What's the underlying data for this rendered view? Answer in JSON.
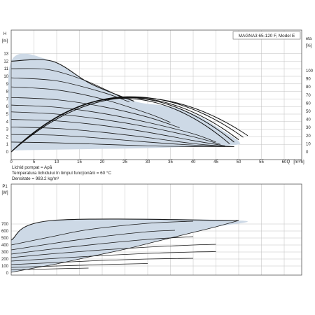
{
  "chart_data": [
    {
      "type": "line",
      "title": "MAGNA3 65-120 F, Model E",
      "ylabel": "H",
      "yunit": "[m]",
      "xlabel": "Q",
      "xunit": "[m³/h]",
      "y2label": "eta",
      "y2unit": "[%]",
      "xlim": [
        0,
        65
      ],
      "ylim": [
        0,
        14
      ],
      "y2lim": [
        0,
        130
      ],
      "x_ticks": [
        0,
        5,
        10,
        15,
        20,
        25,
        30,
        35,
        40,
        45,
        50,
        55,
        60
      ],
      "y_ticks": [
        0,
        1,
        2,
        3,
        4,
        5,
        6,
        7,
        8,
        9,
        10,
        11,
        12,
        13
      ],
      "y2_ticks": [
        0,
        10,
        20,
        30,
        40,
        50,
        60,
        70,
        80,
        90,
        100
      ],
      "grid": true,
      "envelope": [
        [
          0,
          0
        ],
        [
          0,
          12.0
        ],
        [
          9,
          12.0
        ],
        [
          17.5,
          9.0
        ],
        [
          27,
          6.7
        ],
        [
          35,
          6.0
        ],
        [
          41,
          4.8
        ],
        [
          46,
          3.0
        ],
        [
          50,
          1.4
        ],
        [
          49,
          0.9
        ],
        [
          40,
          0.7
        ],
        [
          30,
          0.5
        ],
        [
          20,
          0.4
        ],
        [
          10,
          0.3
        ],
        [
          0,
          0.2
        ]
      ],
      "qh_curves": [
        {
          "points": [
            [
              0,
              12.0
            ],
            [
              9,
              12.0
            ],
            [
              17.5,
              9.0
            ],
            [
              27,
              6.7
            ]
          ]
        },
        {
          "points": [
            [
              0,
              11.0
            ],
            [
              8,
              10.9
            ],
            [
              16,
              9.5
            ],
            [
              24,
              7.3
            ]
          ]
        },
        {
          "points": [
            [
              0,
              9.8
            ],
            [
              10,
              9.4
            ],
            [
              20,
              7.9
            ],
            [
              26,
              6.6
            ]
          ]
        },
        {
          "points": [
            [
              0,
              8.6
            ],
            [
              10,
              8.2
            ],
            [
              20,
              7.0
            ],
            [
              30,
              5.1
            ],
            [
              35,
              3.9
            ]
          ]
        },
        {
          "points": [
            [
              0,
              7.2
            ],
            [
              10,
              6.9
            ],
            [
              20,
              6.0
            ],
            [
              30,
              4.6
            ],
            [
              37,
              3.2
            ]
          ]
        },
        {
          "points": [
            [
              0,
              6.2
            ],
            [
              10,
              5.9
            ],
            [
              20,
              5.1
            ],
            [
              30,
              3.9
            ],
            [
              40,
              2.4
            ],
            [
              45,
              1.3
            ]
          ]
        },
        {
          "points": [
            [
              0,
              5.3
            ],
            [
              10,
              5.0
            ],
            [
              20,
              4.3
            ],
            [
              30,
              3.3
            ],
            [
              40,
              2.0
            ],
            [
              46,
              1.0
            ]
          ]
        },
        {
          "points": [
            [
              0,
              4.3
            ],
            [
              10,
              4.1
            ],
            [
              20,
              3.5
            ],
            [
              30,
              2.6
            ],
            [
              40,
              1.5
            ],
            [
              47,
              0.8
            ]
          ]
        },
        {
          "points": [
            [
              0,
              3.3
            ],
            [
              10,
              3.1
            ],
            [
              20,
              2.6
            ],
            [
              30,
              1.9
            ],
            [
              40,
              1.1
            ],
            [
              48,
              0.7
            ]
          ]
        },
        {
          "points": [
            [
              0,
              2.3
            ],
            [
              10,
              2.2
            ],
            [
              20,
              1.8
            ],
            [
              30,
              1.3
            ],
            [
              40,
              0.9
            ],
            [
              49,
              0.7
            ]
          ]
        },
        {
          "points": [
            [
              0,
              1.3
            ],
            [
              10,
              1.2
            ],
            [
              20,
              1.0
            ],
            [
              30,
              0.8
            ],
            [
              40,
              0.7
            ],
            [
              49,
              0.7
            ]
          ]
        }
      ],
      "efficiency_curves": [
        {
          "peak_q": 24.5,
          "end_q": 48.0,
          "peak_eta": 66,
          "end_eta": 10
        },
        {
          "peak_q": 25.0,
          "end_q": 49.0,
          "peak_eta": 67,
          "end_eta": 12
        },
        {
          "peak_q": 25.5,
          "end_q": 50.0,
          "peak_eta": 67,
          "end_eta": 15
        },
        {
          "peak_q": 26.0,
          "end_q": 51.0,
          "peak_eta": 68,
          "end_eta": 18
        },
        {
          "peak_q": 27.0,
          "end_q": 52.0,
          "peak_eta": 67,
          "end_eta": 20
        }
      ],
      "info_lines": [
        "Lichid pompat = Apă",
        "Temperatura lichidului în timpul funcţionării = 60 °C",
        "Densitate = 983.2 kg/m³"
      ]
    },
    {
      "type": "line",
      "ylabel": "P1",
      "yunit": "[W]",
      "xlim": [
        0,
        65
      ],
      "ylim": [
        0,
        800
      ],
      "y_ticks": [
        0,
        100,
        200,
        300,
        400,
        500,
        600,
        700
      ],
      "grid": true,
      "envelope": [
        [
          0,
          470
        ],
        [
          9,
          750
        ],
        [
          50,
          750
        ],
        [
          45,
          660
        ],
        [
          40,
          580
        ],
        [
          35,
          500
        ],
        [
          30,
          420
        ],
        [
          25,
          340
        ],
        [
          20,
          270
        ],
        [
          15,
          200
        ],
        [
          10,
          130
        ],
        [
          5,
          70
        ],
        [
          0,
          10
        ]
      ],
      "power_curves": [
        {
          "points": [
            [
              0,
              470
            ],
            [
              9,
              750
            ],
            [
              50,
              750
            ]
          ]
        },
        {
          "points": [
            [
              0,
              400
            ],
            [
              9,
              520
            ],
            [
              17,
              620
            ],
            [
              30,
              710
            ],
            [
              40,
              740
            ]
          ]
        },
        {
          "points": [
            [
              0,
              330
            ],
            [
              10,
              430
            ],
            [
              20,
              520
            ],
            [
              30,
              590
            ],
            [
              36,
              610
            ]
          ]
        },
        {
          "points": [
            [
              0,
              270
            ],
            [
              10,
              350
            ],
            [
              20,
              420
            ],
            [
              30,
              480
            ],
            [
              40,
              520
            ]
          ]
        },
        {
          "points": [
            [
              0,
              220
            ],
            [
              10,
              280
            ],
            [
              20,
              330
            ],
            [
              30,
              370
            ],
            [
              40,
              400
            ],
            [
              45,
              410
            ]
          ]
        },
        {
          "points": [
            [
              0,
              170
            ],
            [
              10,
              210
            ],
            [
              20,
              250
            ],
            [
              30,
              280
            ],
            [
              40,
              300
            ],
            [
              45,
              305
            ]
          ]
        },
        {
          "points": [
            [
              0,
              120
            ],
            [
              10,
              150
            ],
            [
              20,
              180
            ],
            [
              30,
              200
            ],
            [
              40,
              210
            ]
          ]
        },
        {
          "points": [
            [
              0,
              80
            ],
            [
              10,
              100
            ],
            [
              20,
              120
            ],
            [
              30,
              135
            ]
          ]
        },
        {
          "points": [
            [
              0,
              45
            ],
            [
              10,
              60
            ],
            [
              17,
              70
            ]
          ]
        }
      ]
    }
  ]
}
